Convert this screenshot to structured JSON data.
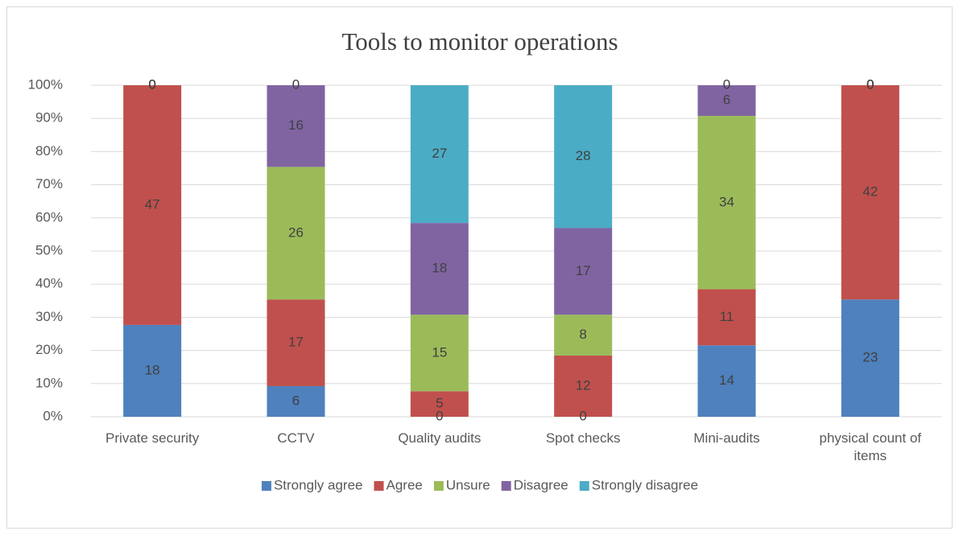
{
  "chart_data": {
    "type": "bar",
    "stacking": "percent",
    "title": "Tools to monitor operations",
    "categories": [
      "Private security",
      "CCTV",
      "Quality audits",
      "Spot checks",
      "Mini-audits",
      "physical count of items"
    ],
    "series": [
      {
        "name": "Strongly agree",
        "color": "#4e81bd",
        "values": [
          18,
          6,
          0,
          0,
          14,
          23
        ]
      },
      {
        "name": "Agree",
        "color": "#c0504d",
        "values": [
          47,
          17,
          5,
          12,
          11,
          42
        ]
      },
      {
        "name": "Unsure",
        "color": "#9bbb59",
        "values": [
          0,
          26,
          15,
          8,
          34,
          0
        ]
      },
      {
        "name": "Disagree",
        "color": "#8064a2",
        "values": [
          0,
          16,
          18,
          17,
          6,
          0
        ]
      },
      {
        "name": "Strongly disagree",
        "color": "#4bacc6",
        "values": [
          0,
          0,
          27,
          28,
          0,
          0
        ]
      }
    ],
    "ylim": [
      0,
      100
    ],
    "yticks": [
      {
        "value": 0,
        "label": "0%"
      },
      {
        "value": 10,
        "label": "10%"
      },
      {
        "value": 20,
        "label": "20%"
      },
      {
        "value": 30,
        "label": "30%"
      },
      {
        "value": 40,
        "label": "40%"
      },
      {
        "value": 50,
        "label": "50%"
      },
      {
        "value": 60,
        "label": "60%"
      },
      {
        "value": 70,
        "label": "70%"
      },
      {
        "value": 80,
        "label": "80%"
      },
      {
        "value": 90,
        "label": "90%"
      },
      {
        "value": 100,
        "label": "100%"
      }
    ],
    "grid": true,
    "legend": "bottom"
  }
}
